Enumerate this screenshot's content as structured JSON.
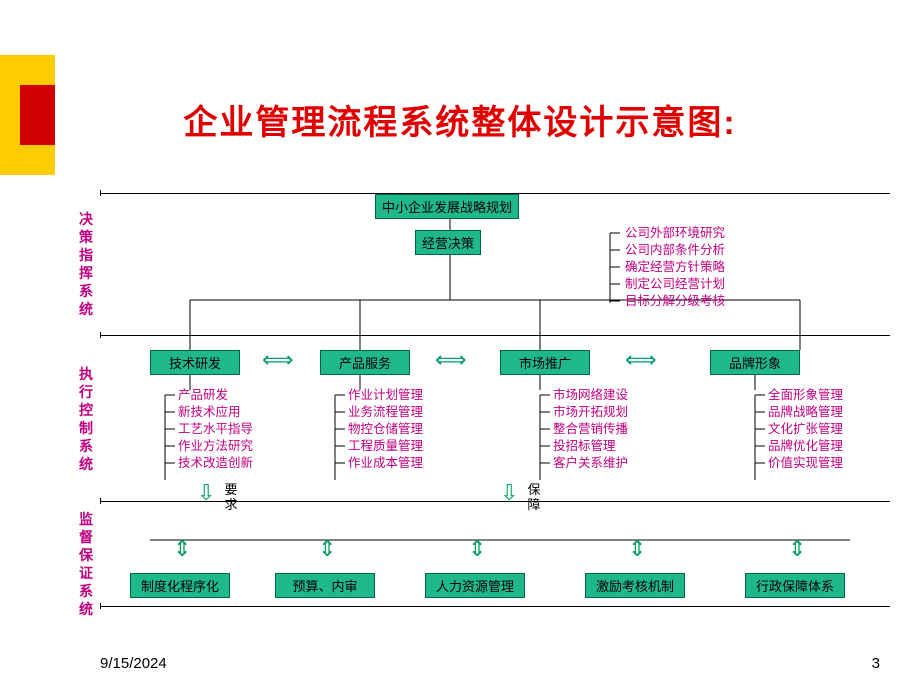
{
  "title": "企业管理流程系统整体设计示意图:",
  "footer": {
    "date": "9/15/2024",
    "page": "3"
  },
  "colors": {
    "box_fill": "#1fb88a",
    "box_border": "#006644",
    "accent_text": "#c00080",
    "title": "#e00000",
    "arrow": "#00a060"
  },
  "sections": {
    "s1": "决策指挥系统",
    "s2": "执行控制系统",
    "s3": "监督保证系统"
  },
  "top": {
    "a": "中小企业发展战略规划",
    "b": "经营决策",
    "items": [
      "公司外部环境研究",
      "公司内部条件分析",
      "确定经营方针策略",
      "制定公司经营计划",
      "目标分解分级考核"
    ]
  },
  "mid": {
    "b1": "技术研发",
    "b2": "产品服务",
    "b3": "市场推广",
    "b4": "品牌形象",
    "l1": [
      "产品研发",
      "新技术应用",
      "工艺水平指导",
      "作业方法研究",
      "技术改造创新"
    ],
    "l2": [
      "作业计划管理",
      "业务流程管理",
      "物控仓储管理",
      "工程质量管理",
      "作业成本管理"
    ],
    "l3": [
      "市场网络建设",
      "市场开拓规划",
      "整合营销传播",
      "投招标管理",
      "客户关系维护"
    ],
    "l4": [
      "全面形象管理",
      "品牌战略管理",
      "文化扩张管理",
      "品牌优化管理",
      "价值实现管理"
    ]
  },
  "bottom": {
    "b1": "制度化程序化",
    "b2": "预算、内审",
    "b3": "人力资源管理",
    "b4": "激励考核机制",
    "b5": "行政保障体系"
  },
  "labels": {
    "req": "要求",
    "guar": "保障"
  }
}
